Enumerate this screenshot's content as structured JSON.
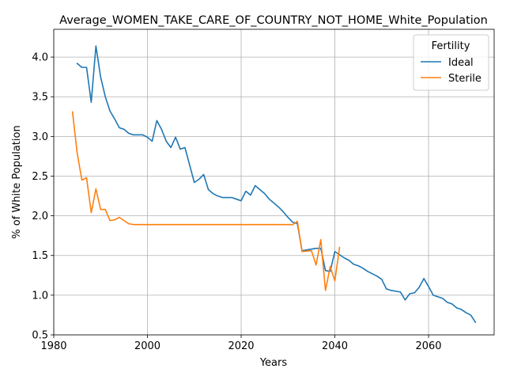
{
  "chart_data": {
    "type": "line",
    "title": "Average_WOMEN_TAKE_CARE_OF_COUNTRY_NOT_HOME_White_Population",
    "xlabel": "Years",
    "ylabel": "% of White Population",
    "xlim": [
      1980,
      2074
    ],
    "ylim": [
      0.5,
      4.35
    ],
    "xticks": [
      1980,
      2000,
      2020,
      2040,
      2060
    ],
    "yticks": [
      0.5,
      1.0,
      1.5,
      2.0,
      2.5,
      3.0,
      3.5,
      4.0
    ],
    "grid": true,
    "legend": {
      "title": "Fertility",
      "placement": "top-right"
    },
    "series": [
      {
        "name": "Ideal",
        "color": "#1f77b4",
        "points": [
          [
            1985,
            3.92
          ],
          [
            1986,
            3.87
          ],
          [
            1987,
            3.87
          ],
          [
            1988,
            3.43
          ],
          [
            1989,
            4.14
          ],
          [
            1990,
            3.75
          ],
          [
            1991,
            3.5
          ],
          [
            1992,
            3.32
          ],
          [
            1993,
            3.22
          ],
          [
            1994,
            3.11
          ],
          [
            1995,
            3.09
          ],
          [
            1996,
            3.04
          ],
          [
            1997,
            3.02
          ],
          [
            1998,
            3.02
          ],
          [
            1999,
            3.02
          ],
          [
            2000,
            2.99
          ],
          [
            2001,
            2.94
          ],
          [
            2002,
            3.2
          ],
          [
            2003,
            3.09
          ],
          [
            2004,
            2.94
          ],
          [
            2005,
            2.86
          ],
          [
            2006,
            2.99
          ],
          [
            2007,
            2.84
          ],
          [
            2008,
            2.86
          ],
          [
            2009,
            2.64
          ],
          [
            2010,
            2.42
          ],
          [
            2011,
            2.46
          ],
          [
            2012,
            2.52
          ],
          [
            2013,
            2.33
          ],
          [
            2014,
            2.28
          ],
          [
            2015,
            2.25
          ],
          [
            2016,
            2.23
          ],
          [
            2017,
            2.23
          ],
          [
            2018,
            2.23
          ],
          [
            2019,
            2.21
          ],
          [
            2020,
            2.19
          ],
          [
            2021,
            2.31
          ],
          [
            2022,
            2.26
          ],
          [
            2023,
            2.38
          ],
          [
            2024,
            2.33
          ],
          [
            2025,
            2.28
          ],
          [
            2026,
            2.21
          ],
          [
            2027,
            2.16
          ],
          [
            2028,
            2.11
          ],
          [
            2029,
            2.05
          ],
          [
            2030,
            1.98
          ],
          [
            2031,
            1.92
          ],
          [
            2032,
            1.9
          ],
          [
            2033,
            1.56
          ],
          [
            2034,
            1.57
          ],
          [
            2035,
            1.58
          ],
          [
            2036,
            1.59
          ],
          [
            2037,
            1.59
          ],
          [
            2038,
            1.31
          ],
          [
            2039,
            1.3
          ],
          [
            2040,
            1.55
          ],
          [
            2041,
            1.51
          ],
          [
            2042,
            1.47
          ],
          [
            2043,
            1.44
          ],
          [
            2044,
            1.39
          ],
          [
            2045,
            1.37
          ],
          [
            2046,
            1.34
          ],
          [
            2047,
            1.3
          ],
          [
            2048,
            1.27
          ],
          [
            2049,
            1.24
          ],
          [
            2050,
            1.2
          ],
          [
            2051,
            1.08
          ],
          [
            2052,
            1.06
          ],
          [
            2053,
            1.05
          ],
          [
            2054,
            1.04
          ],
          [
            2055,
            0.94
          ],
          [
            2056,
            1.02
          ],
          [
            2057,
            1.03
          ],
          [
            2058,
            1.1
          ],
          [
            2059,
            1.21
          ],
          [
            2060,
            1.11
          ],
          [
            2061,
            1.0
          ],
          [
            2062,
            0.98
          ],
          [
            2063,
            0.96
          ],
          [
            2064,
            0.91
          ],
          [
            2065,
            0.89
          ],
          [
            2066,
            0.84
          ],
          [
            2067,
            0.82
          ],
          [
            2068,
            0.78
          ],
          [
            2069,
            0.75
          ],
          [
            2070,
            0.66
          ]
        ]
      },
      {
        "name": "Sterile",
        "color": "#ff7f0e",
        "points": [
          [
            1984,
            3.31
          ],
          [
            1985,
            2.79
          ],
          [
            1986,
            2.45
          ],
          [
            1987,
            2.48
          ],
          [
            1988,
            2.04
          ],
          [
            1989,
            2.34
          ],
          [
            1990,
            2.08
          ],
          [
            1991,
            2.08
          ],
          [
            1992,
            1.94
          ],
          [
            1993,
            1.95
          ],
          [
            1994,
            1.98
          ],
          [
            1995,
            1.94
          ],
          [
            1996,
            1.9
          ],
          [
            1997,
            1.89
          ],
          [
            1998,
            1.89
          ],
          [
            2000,
            1.89
          ],
          [
            2010,
            1.89
          ],
          [
            2020,
            1.89
          ],
          [
            2031,
            1.89
          ],
          [
            2032,
            1.93
          ],
          [
            2033,
            1.55
          ],
          [
            2035,
            1.56
          ],
          [
            2036,
            1.38
          ],
          [
            2037,
            1.7
          ],
          [
            2038,
            1.06
          ],
          [
            2039,
            1.36
          ],
          [
            2040,
            1.18
          ],
          [
            2041,
            1.6
          ]
        ]
      }
    ]
  }
}
